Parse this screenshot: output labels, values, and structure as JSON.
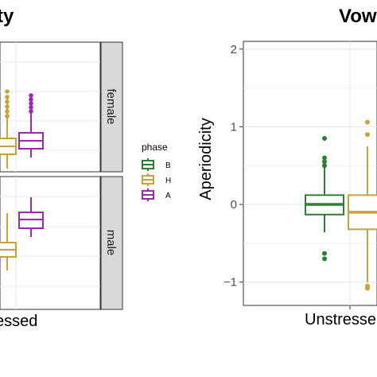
{
  "left_panel": {
    "title": "ty",
    "x_label": "essed",
    "facets": [
      "female",
      "male"
    ]
  },
  "right_panel": {
    "title": "Vow",
    "y_label": "Aperiodicity",
    "x_label": "Unstresse",
    "y_ticks": [
      "2",
      "1",
      "0",
      "−1"
    ]
  },
  "legend": {
    "title": "phase",
    "entries": [
      {
        "label": "B",
        "color": "#2e7d32"
      },
      {
        "label": "H",
        "color": "#c9a13a"
      },
      {
        "label": "A",
        "color": "#9c27b0"
      }
    ]
  },
  "chart_data": [
    {
      "type": "box",
      "facets": [
        "female",
        "male"
      ],
      "series": [
        {
          "name": "H",
          "color": "#c9a13a"
        },
        {
          "name": "A",
          "color": "#9c27b0"
        }
      ]
    },
    {
      "type": "box",
      "ylabel": "Aperiodicity",
      "ylim": [
        -1.3,
        2.1
      ],
      "y_ticks": [
        2,
        1,
        0,
        -1
      ],
      "grid": true,
      "series": [
        {
          "name": "B",
          "color": "#2e7d32",
          "q1": -0.13,
          "median": 0.0,
          "q3": 0.12,
          "whisker_low": -0.36,
          "whisker_high": 0.48,
          "outliers": [
            0.85,
            0.6,
            0.55,
            0.5,
            -0.63,
            -0.7
          ]
        },
        {
          "name": "H",
          "color": "#c9a13a",
          "q1": -0.32,
          "median": -0.1,
          "q3": 0.12,
          "whisker_low": -1.0,
          "whisker_high": 0.75,
          "outliers": [
            1.06,
            0.9,
            -1.05,
            -1.08
          ]
        }
      ]
    }
  ]
}
